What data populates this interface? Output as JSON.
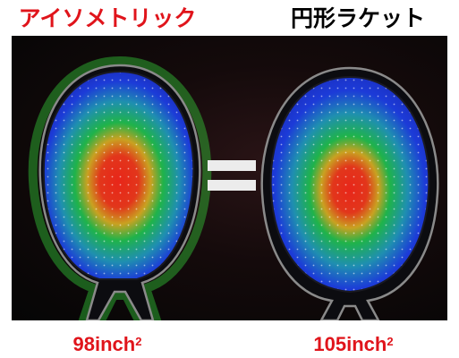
{
  "labels": {
    "left_title": "アイソメトリック",
    "right_title": "円形ラケット",
    "left_size_value": "98inch",
    "right_size_value": "105inch",
    "exponent": "2"
  },
  "symbols": {
    "equals": "="
  },
  "colors": {
    "title_red": "#e0141b",
    "title_black": "#000000",
    "heat_core": "#e8261a",
    "heat_mid": "#1fb34a",
    "heat_outer": "#1c3bd8",
    "frame_glow": "#3cff46",
    "background": "#0a0606"
  },
  "icons": {
    "left_racket": "isometric-racket-heatmap",
    "right_racket": "round-racket-heatmap",
    "equals": "equals-sign"
  }
}
